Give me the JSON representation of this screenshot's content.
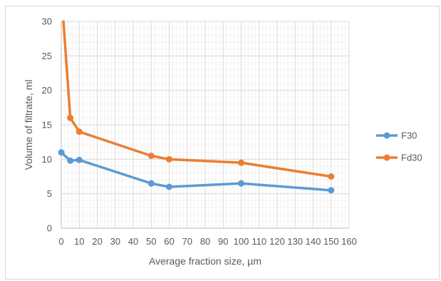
{
  "chart_data": {
    "type": "line",
    "title": "",
    "xlabel": "Average fraction size, µm",
    "ylabel": "Volume of filtrate, ml",
    "xlim": [
      0,
      160
    ],
    "ylim": [
      0,
      30
    ],
    "xticks": [
      0,
      10,
      20,
      30,
      40,
      50,
      60,
      70,
      80,
      90,
      100,
      110,
      120,
      130,
      140,
      150,
      160
    ],
    "yticks": [
      0,
      5,
      10,
      15,
      20,
      25,
      30
    ],
    "grid": "both (major and minor)",
    "legend_position": "right",
    "series": [
      {
        "name": "F30",
        "color": "#5b9bd5",
        "x": [
          0,
          5,
          10,
          50,
          60,
          100,
          150
        ],
        "y": [
          11,
          9.8,
          9.9,
          6.5,
          6,
          6.5,
          5.5
        ]
      },
      {
        "name": "Fd30",
        "color": "#ed7d31",
        "x": [
          1.2,
          5,
          10,
          50,
          60,
          100,
          150
        ],
        "y": [
          30,
          16,
          14,
          10.5,
          10,
          9.5,
          7.5
        ]
      }
    ]
  }
}
